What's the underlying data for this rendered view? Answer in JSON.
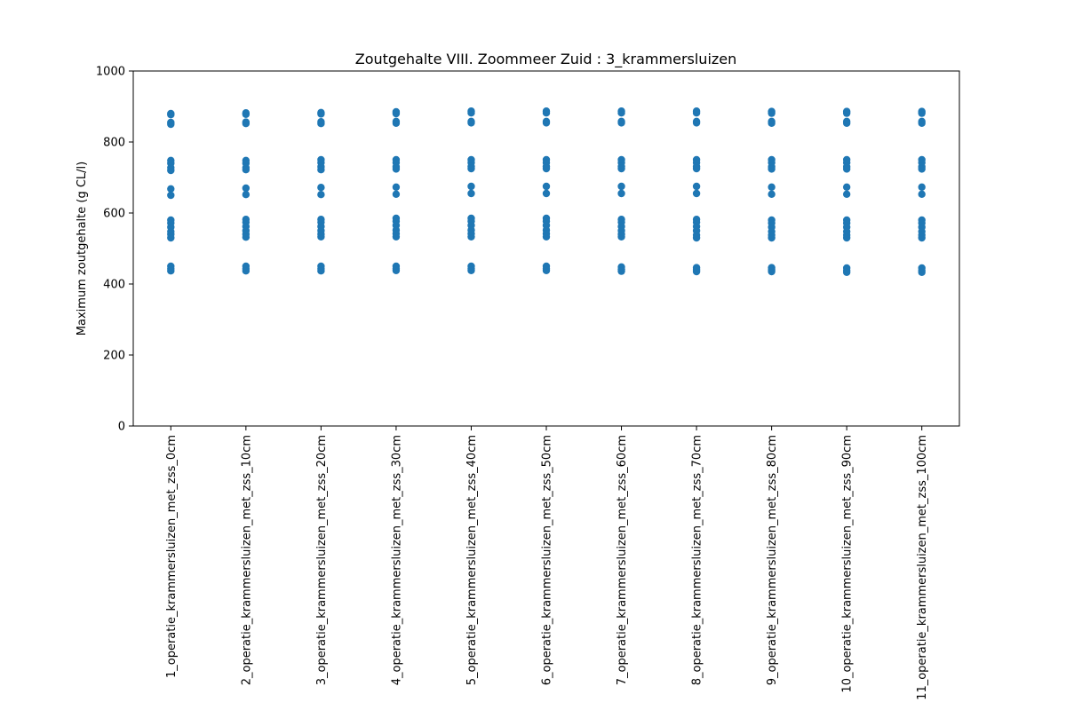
{
  "chart_data": {
    "type": "scatter",
    "title": "Zoutgehalte VIII. Zoommeer Zuid : 3_krammersluizen",
    "xlabel": "",
    "ylabel": "Maximum zoutgehalte (g CL/l)",
    "ylim": [
      0,
      1000
    ],
    "yticks": [
      0,
      200,
      400,
      600,
      800,
      1000
    ],
    "grid": false,
    "legend": "none",
    "marker_color": "#1f77b4",
    "categories": [
      "1_operatie_krammersluizen_met_zss_0cm",
      "2_operatie_krammersluizen_met_zss_10cm",
      "3_operatie_krammersluizen_met_zss_20cm",
      "4_operatie_krammersluizen_met_zss_30cm",
      "5_operatie_krammersluizen_met_zss_40cm",
      "6_operatie_krammersluizen_met_zss_50cm",
      "7_operatie_krammersluizen_met_zss_60cm",
      "8_operatie_krammersluizen_met_zss_70cm",
      "9_operatie_krammersluizen_met_zss_80cm",
      "10_operatie_krammersluizen_met_zss_90cm",
      "11_operatie_krammersluizen_met_zss_100cm"
    ],
    "points": [
      [
        880,
        877,
        855,
        850,
        748,
        740,
        728,
        720,
        668,
        650,
        580,
        572,
        560,
        548,
        540,
        530,
        450,
        443,
        437
      ],
      [
        882,
        878,
        856,
        852,
        748,
        740,
        728,
        722,
        670,
        652,
        582,
        574,
        562,
        550,
        540,
        532,
        450,
        443,
        437
      ],
      [
        883,
        879,
        857,
        852,
        750,
        742,
        730,
        722,
        672,
        652,
        582,
        574,
        562,
        550,
        540,
        533,
        450,
        443,
        437
      ],
      [
        885,
        880,
        858,
        853,
        750,
        742,
        730,
        724,
        673,
        653,
        585,
        577,
        565,
        552,
        542,
        533,
        450,
        443,
        438
      ],
      [
        887,
        882,
        858,
        854,
        750,
        742,
        731,
        725,
        675,
        655,
        585,
        577,
        565,
        552,
        542,
        533,
        450,
        443,
        438
      ],
      [
        887,
        882,
        858,
        854,
        750,
        742,
        731,
        725,
        675,
        655,
        585,
        577,
        565,
        552,
        542,
        533,
        450,
        443,
        438
      ],
      [
        887,
        882,
        858,
        854,
        750,
        742,
        731,
        725,
        675,
        655,
        582,
        574,
        562,
        550,
        540,
        533,
        448,
        441,
        436
      ],
      [
        887,
        882,
        858,
        854,
        750,
        742,
        731,
        725,
        675,
        655,
        582,
        574,
        562,
        550,
        538,
        530,
        446,
        440,
        435
      ],
      [
        886,
        881,
        858,
        853,
        750,
        742,
        730,
        724,
        673,
        653,
        580,
        572,
        560,
        548,
        538,
        530,
        446,
        440,
        435
      ],
      [
        886,
        881,
        858,
        853,
        750,
        742,
        730,
        724,
        673,
        653,
        580,
        572,
        560,
        548,
        538,
        530,
        445,
        438,
        433
      ],
      [
        886,
        881,
        858,
        853,
        750,
        742,
        730,
        724,
        673,
        653,
        580,
        572,
        560,
        548,
        538,
        530,
        445,
        438,
        433
      ]
    ]
  }
}
